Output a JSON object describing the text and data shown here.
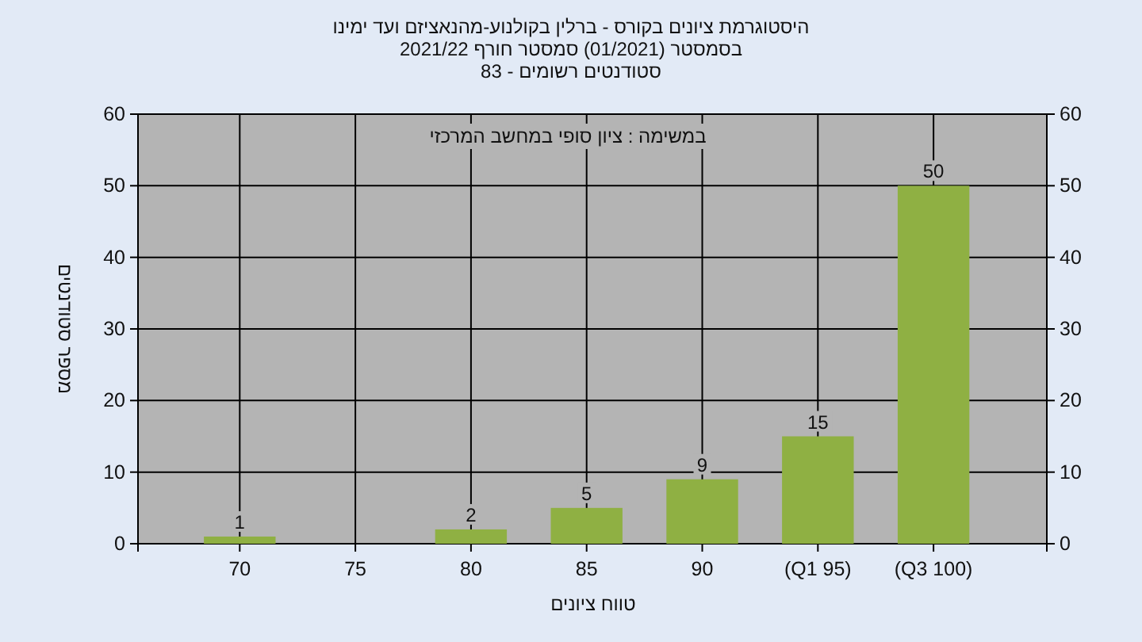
{
  "chart_data": {
    "type": "bar",
    "title": "היסטוגרמת ציונים בקורס - ברלין בקולנוע-מהנאציזם ועד ימינו",
    "subtitle": "בסמסטר (01/2021) סמסטר חורף 2021/22",
    "annotations": [
      "סטודנטים רשומים - 83",
      "במשימה : ציון סופי במחשב המרכזי"
    ],
    "xlabel": "טווח ציונים",
    "ylabel": "מספר סטודנטים",
    "categories": [
      "70",
      "75",
      "80",
      "85",
      "90",
      "(Q1 95)",
      "(Q3 100)"
    ],
    "values": [
      1,
      0,
      2,
      5,
      9,
      15,
      50
    ],
    "value_labels": [
      "1",
      null,
      "2",
      "5",
      "9",
      "15",
      "50"
    ],
    "color": "#8fb043",
    "ylim": [
      0,
      60
    ],
    "yticks": [
      0,
      10,
      20,
      30,
      40,
      50,
      60
    ],
    "y2lim": [
      0,
      60
    ],
    "y2ticks": [
      0,
      10,
      20,
      30,
      40,
      50,
      60
    ],
    "grid": true
  }
}
